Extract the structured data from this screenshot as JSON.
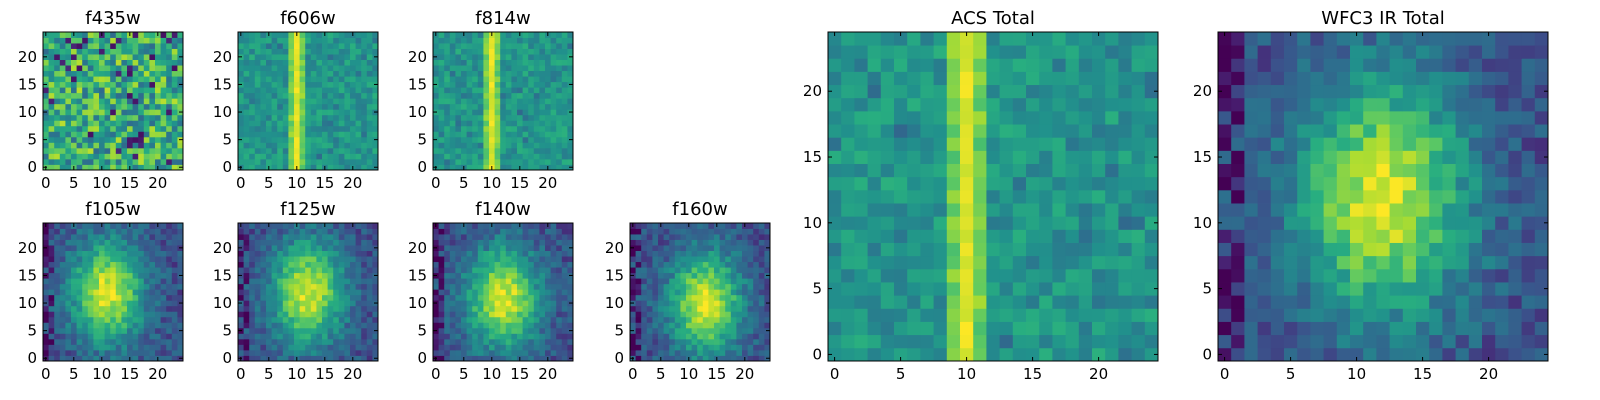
{
  "chart_data": [
    {
      "type": "heatmap",
      "title": "f435w",
      "image_size": 25,
      "xticks": [
        0,
        5,
        10,
        15,
        20
      ],
      "yticks": [
        0,
        5,
        10,
        15,
        20
      ],
      "xlim": [
        -0.5,
        24.5
      ],
      "ylim": [
        -0.5,
        24.5
      ],
      "colormap": "viridis",
      "pattern": "noise"
    },
    {
      "type": "heatmap",
      "title": "f606w",
      "image_size": 25,
      "xticks": [
        0,
        5,
        10,
        15,
        20
      ],
      "yticks": [
        0,
        5,
        10,
        15,
        20
      ],
      "xlim": [
        -0.5,
        24.5
      ],
      "ylim": [
        -0.5,
        24.5
      ],
      "colormap": "viridis",
      "pattern": "vertical_streak",
      "streak_column": 10
    },
    {
      "type": "heatmap",
      "title": "f814w",
      "image_size": 25,
      "xticks": [
        0,
        5,
        10,
        15,
        20
      ],
      "yticks": [
        0,
        5,
        10,
        15,
        20
      ],
      "xlim": [
        -0.5,
        24.5
      ],
      "ylim": [
        -0.5,
        24.5
      ],
      "colormap": "viridis",
      "pattern": "vertical_streak",
      "streak_column": 10
    },
    {
      "type": "heatmap",
      "title": "f105w",
      "image_size": 25,
      "xticks": [
        0,
        5,
        10,
        15,
        20
      ],
      "yticks": [
        0,
        5,
        10,
        15,
        20
      ],
      "xlim": [
        -0.5,
        24.5
      ],
      "ylim": [
        -0.5,
        24.5
      ],
      "colormap": "viridis",
      "pattern": "diffuse_blob",
      "center": [
        11,
        12
      ]
    },
    {
      "type": "heatmap",
      "title": "f125w",
      "image_size": 25,
      "xticks": [
        0,
        5,
        10,
        15,
        20
      ],
      "yticks": [
        0,
        5,
        10,
        15,
        20
      ],
      "xlim": [
        -0.5,
        24.5
      ],
      "ylim": [
        -0.5,
        24.5
      ],
      "colormap": "viridis",
      "pattern": "diffuse_blob",
      "center": [
        12,
        12
      ]
    },
    {
      "type": "heatmap",
      "title": "f140w",
      "image_size": 25,
      "xticks": [
        0,
        5,
        10,
        15,
        20
      ],
      "yticks": [
        0,
        5,
        10,
        15,
        20
      ],
      "xlim": [
        -0.5,
        24.5
      ],
      "ylim": [
        -0.5,
        24.5
      ],
      "colormap": "viridis",
      "pattern": "diffuse_blob",
      "center": [
        12,
        11
      ]
    },
    {
      "type": "heatmap",
      "title": "f160w",
      "image_size": 25,
      "xticks": [
        0,
        5,
        10,
        15,
        20
      ],
      "yticks": [
        0,
        5,
        10,
        15,
        20
      ],
      "xlim": [
        -0.5,
        24.5
      ],
      "ylim": [
        -0.5,
        24.5
      ],
      "colormap": "viridis",
      "pattern": "diffuse_blob",
      "center": [
        13,
        10
      ]
    },
    {
      "type": "heatmap",
      "title": "ACS Total",
      "image_size": 25,
      "xticks": [
        0,
        5,
        10,
        15,
        20
      ],
      "yticks": [
        0,
        5,
        10,
        15,
        20
      ],
      "xlim": [
        -0.5,
        24.5
      ],
      "ylim": [
        -0.5,
        24.5
      ],
      "colormap": "viridis",
      "pattern": "vertical_streak",
      "streak_column": 10
    },
    {
      "type": "heatmap",
      "title": "WFC3 IR Total",
      "image_size": 25,
      "xticks": [
        0,
        5,
        10,
        15,
        20
      ],
      "yticks": [
        0,
        5,
        10,
        15,
        20
      ],
      "xlim": [
        -0.5,
        24.5
      ],
      "ylim": [
        -0.5,
        24.5
      ],
      "colormap": "viridis",
      "pattern": "diffuse_blob",
      "center": [
        12,
        12
      ]
    }
  ]
}
